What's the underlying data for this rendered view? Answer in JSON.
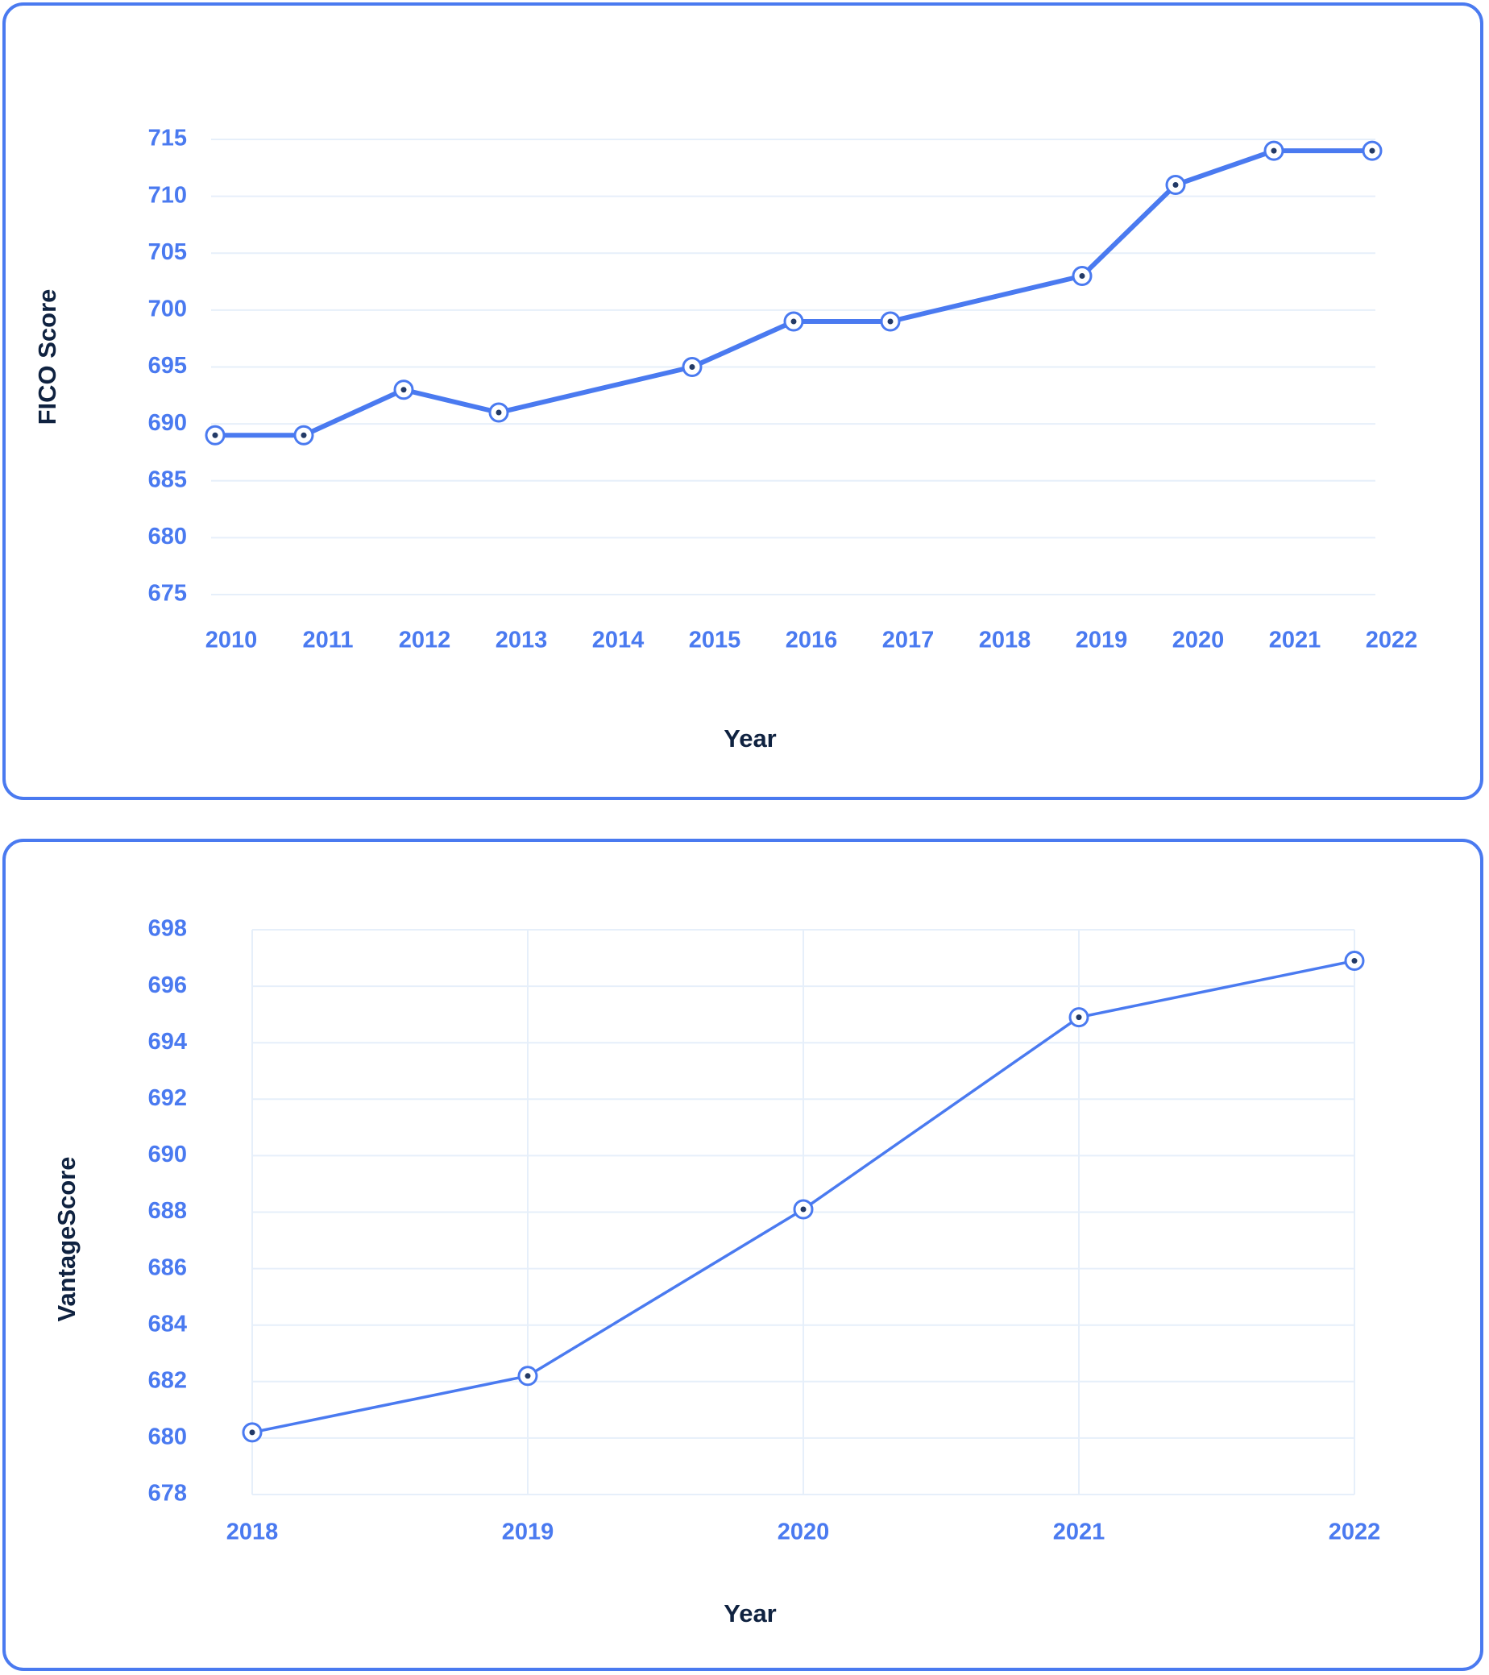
{
  "chart_data": [
    {
      "type": "line",
      "xlabel": "Year",
      "ylabel": "FICO Score",
      "x": [
        2010,
        2011,
        2012,
        2013,
        2015,
        2016,
        2017,
        2019,
        2020,
        2021,
        2022
      ],
      "x_ticks": [
        "2010",
        "2011",
        "2012",
        "2013",
        "2014",
        "2015",
        "2016",
        "2017",
        "2018",
        "2019",
        "2020",
        "2021",
        "2022"
      ],
      "y_ticks": [
        "715",
        "710",
        "705",
        "700",
        "695",
        "690",
        "685",
        "680",
        "675"
      ],
      "series": [
        {
          "values": [
            689,
            689,
            693,
            691,
            695,
            699,
            699,
            703,
            711,
            714,
            714
          ]
        }
      ],
      "ylim": [
        675,
        715
      ],
      "xlim": [
        2010,
        2022
      ],
      "grid": "horizontal",
      "legend": "none",
      "color": "#4a7af0"
    },
    {
      "type": "line",
      "xlabel": "Year",
      "ylabel": "VantageScore",
      "x": [
        2018,
        2019,
        2020,
        2021,
        2022
      ],
      "x_ticks": [
        "2018",
        "2019",
        "2020",
        "2021",
        "2022"
      ],
      "y_ticks": [
        "698",
        "696",
        "694",
        "692",
        "690",
        "688",
        "686",
        "684",
        "682",
        "680",
        "678"
      ],
      "series": [
        {
          "values": [
            680.2,
            682.2,
            688.1,
            694.9,
            696.9
          ]
        }
      ],
      "ylim": [
        678,
        698
      ],
      "xlim": [
        2018,
        2022
      ],
      "grid": "both",
      "legend": "none",
      "color": "#4a7af0"
    }
  ]
}
